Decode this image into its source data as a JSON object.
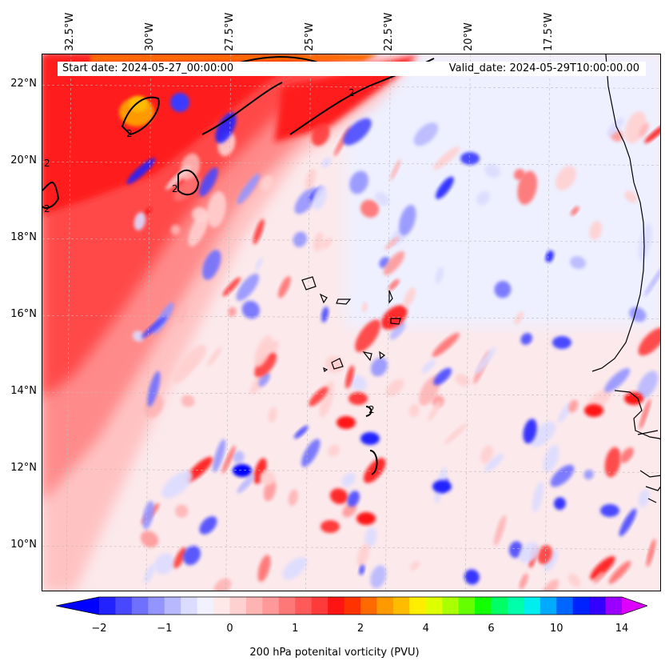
{
  "map": {
    "info": {
      "start_date": "Start date: 2024-05-27_00:00:00",
      "valid_date": "Valid_date: 2024-05-29T10:00:00.00"
    },
    "extent": {
      "lon_min": -33.4,
      "lon_max": -14.0,
      "lat_min": 8.8,
      "lat_max": 22.8
    },
    "lon_ticks": [
      "32.5°W",
      "30°W",
      "27.5°W",
      "25°W",
      "22.5°W",
      "20°W",
      "17.5°W"
    ],
    "lon_values": [
      -32.5,
      -30,
      -27.5,
      -25,
      -22.5,
      -20,
      -17.5
    ],
    "lat_ticks": [
      "22°N",
      "20°N",
      "18°N",
      "16°N",
      "14°N",
      "12°N",
      "10°N"
    ],
    "lat_values": [
      22,
      20,
      18,
      16,
      14,
      12,
      10
    ],
    "contour_label": "2",
    "colors": {
      "coastline": "#000000",
      "grid": "#bbbbbb",
      "background_low_pv": "#eef0ff"
    }
  },
  "colorbar": {
    "label": "200 hPa potenital vorticity (PVU)",
    "tick_labels": [
      "−2",
      "−1",
      "0",
      "1",
      "2",
      "4",
      "6",
      "10",
      "14"
    ],
    "colors": [
      "#0000ff",
      "#2222ff",
      "#4848ff",
      "#7070ff",
      "#9494ff",
      "#b8b8ff",
      "#dcdcff",
      "#f2f2ff",
      "#ffe8e8",
      "#ffd0d0",
      "#ffb4b4",
      "#ff9898",
      "#ff7878",
      "#ff5a5a",
      "#ff3a3a",
      "#ff1414",
      "#ff3300",
      "#ff6a00",
      "#ff9900",
      "#ffbb00",
      "#ffee00",
      "#ddff00",
      "#aaff00",
      "#66ff00",
      "#11ff00",
      "#00ff66",
      "#00ffaa",
      "#00eeee",
      "#00aaff",
      "#0066ff",
      "#0022ff",
      "#3300ff",
      "#9900ff",
      "#dd00ff"
    ]
  }
}
